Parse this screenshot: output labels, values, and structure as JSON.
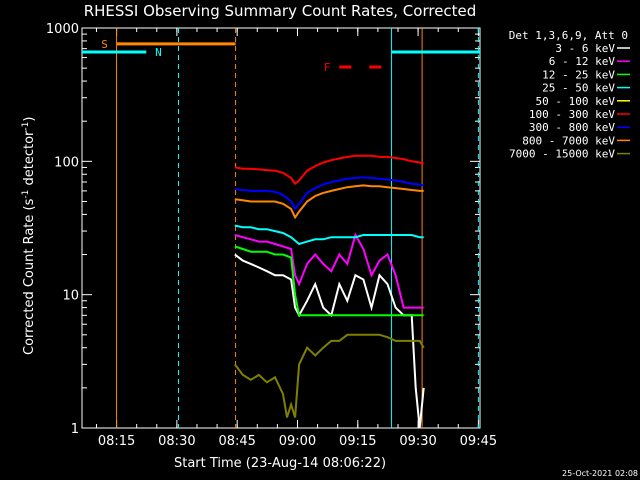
{
  "chart_data": {
    "type": "line",
    "title": "RHESSI Observing Summary Count Rates, Corrected",
    "xlabel": "Start Time (23-Aug-14 08:06:22)",
    "ylabel": "Corrected Count Rate (s⁻¹ detector⁻¹)",
    "ylabel_main": "Corrected Count Rate (s",
    "ylabel_sup1": "-1",
    "ylabel_mid": " detector",
    "ylabel_sup2": "-1",
    "ylabel_end": ")",
    "x_range_minutes": [
      0,
      99
    ],
    "y_scale": "log",
    "ylim": [
      1,
      1000
    ],
    "x_ticks": [
      {
        "min": 8.6,
        "label": "08:15"
      },
      {
        "min": 23.6,
        "label": "08:30"
      },
      {
        "min": 38.6,
        "label": "08:45"
      },
      {
        "min": 53.6,
        "label": "09:00"
      },
      {
        "min": 68.6,
        "label": "09:15"
      },
      {
        "min": 83.6,
        "label": "09:30"
      },
      {
        "min": 98.6,
        "label": "09:45"
      }
    ],
    "y_ticks": [
      {
        "value": 1,
        "label": "1"
      },
      {
        "value": 10,
        "label": "10"
      },
      {
        "value": 100,
        "label": "100"
      },
      {
        "value": 1000,
        "label": "1000"
      }
    ],
    "legend_header": "Det 1,3,6,9, Att 0",
    "legend_position": "right",
    "series": [
      {
        "name": "3 - 6 keV",
        "color": "#ffffff",
        "x": [
          38,
          40,
          42,
          44,
          46,
          48,
          50,
          52,
          53,
          54,
          56,
          58,
          60,
          62,
          64,
          66,
          68,
          70,
          72,
          74,
          76,
          78,
          80,
          82,
          83,
          84,
          85
        ],
        "y": [
          20,
          18,
          17,
          16,
          15,
          14,
          14,
          13,
          8,
          7,
          9,
          12,
          8,
          7,
          12,
          9,
          14,
          13,
          8,
          14,
          12,
          8,
          7,
          7,
          2,
          1,
          2
        ]
      },
      {
        "name": "6 - 12 keV",
        "color": "#ff00ff",
        "x": [
          38,
          40,
          42,
          44,
          46,
          48,
          50,
          52,
          53,
          54,
          56,
          58,
          60,
          62,
          64,
          66,
          68,
          70,
          72,
          74,
          76,
          78,
          80,
          82,
          85
        ],
        "y": [
          28,
          27,
          26,
          25,
          25,
          24,
          23,
          22,
          14,
          12,
          17,
          20,
          17,
          15,
          20,
          17,
          28,
          22,
          14,
          18,
          20,
          14,
          8,
          8,
          8
        ]
      },
      {
        "name": "12 - 25 keV",
        "color": "#00ff00",
        "x": [
          38,
          40,
          42,
          44,
          46,
          48,
          50,
          52,
          53,
          54,
          56,
          58,
          60,
          62,
          64,
          66,
          68,
          70,
          72,
          74,
          76,
          78,
          80,
          82,
          85
        ],
        "y": [
          23,
          22,
          21,
          21,
          21,
          20,
          20,
          19,
          10,
          7,
          7,
          7,
          7,
          7,
          7,
          7,
          7,
          7,
          7,
          7,
          7,
          7,
          7,
          7,
          7
        ]
      },
      {
        "name": "25 - 50 keV",
        "color": "#00ffff",
        "x": [
          38,
          40,
          42,
          44,
          46,
          48,
          50,
          52,
          54,
          56,
          58,
          60,
          62,
          64,
          66,
          68,
          70,
          72,
          74,
          76,
          78,
          80,
          82,
          84,
          85
        ],
        "y": [
          33,
          32,
          32,
          31,
          31,
          30,
          29,
          27,
          24,
          25,
          26,
          26,
          27,
          27,
          27,
          27,
          28,
          28,
          28,
          28,
          28,
          28,
          28,
          27,
          27
        ]
      },
      {
        "name": "50 - 100 keV",
        "color": "#ffff00",
        "x": [],
        "y": []
      },
      {
        "name": "100 - 300 keV",
        "color": "#ff0000",
        "x": [
          38,
          40,
          42,
          44,
          46,
          48,
          50,
          52,
          53,
          54,
          56,
          58,
          60,
          62,
          64,
          66,
          68,
          70,
          72,
          74,
          76,
          78,
          80,
          82,
          84,
          85
        ],
        "y": [
          90,
          88,
          88,
          87,
          86,
          85,
          82,
          75,
          68,
          72,
          85,
          92,
          98,
          102,
          105,
          108,
          110,
          110,
          110,
          108,
          108,
          106,
          104,
          100,
          98,
          96
        ]
      },
      {
        "name": "300 - 800 keV",
        "color": "#0000ff",
        "x": [
          38,
          40,
          42,
          44,
          46,
          48,
          50,
          52,
          53,
          54,
          56,
          58,
          60,
          62,
          64,
          66,
          68,
          70,
          72,
          74,
          76,
          78,
          80,
          82,
          84,
          85
        ],
        "y": [
          62,
          61,
          60,
          60,
          60,
          59,
          56,
          50,
          44,
          48,
          58,
          63,
          67,
          70,
          72,
          74,
          75,
          76,
          75,
          74,
          73,
          72,
          70,
          68,
          67,
          66
        ]
      },
      {
        "name": "800 - 7000 keV",
        "color": "#ff8800",
        "x": [
          38,
          40,
          42,
          44,
          46,
          48,
          50,
          52,
          53,
          54,
          56,
          58,
          60,
          62,
          64,
          66,
          68,
          70,
          72,
          74,
          76,
          78,
          80,
          82,
          84,
          85
        ],
        "y": [
          52,
          51,
          50,
          50,
          50,
          50,
          48,
          44,
          38,
          42,
          50,
          55,
          58,
          60,
          62,
          64,
          65,
          66,
          65,
          65,
          64,
          63,
          62,
          61,
          60,
          60
        ]
      },
      {
        "name": "7000 - 15000 keV",
        "color": "#808000",
        "x": [
          38,
          40,
          42,
          44,
          46,
          48,
          50,
          51,
          52,
          53,
          54,
          56,
          58,
          60,
          62,
          64,
          66,
          68,
          70,
          72,
          74,
          76,
          78,
          80,
          82,
          84,
          85
        ],
        "y": [
          3,
          2.5,
          2.3,
          2.5,
          2.2,
          2.4,
          1.8,
          1.2,
          1.5,
          1.2,
          3,
          4,
          3.5,
          4,
          4.5,
          4.5,
          5,
          5,
          5,
          5,
          5,
          4.8,
          4.5,
          4.5,
          4.5,
          4.5,
          4
        ]
      }
    ],
    "markers": [
      {
        "label": "S",
        "color": "#ff8800",
        "x0": 8.6,
        "x1": 38.2,
        "y": 760,
        "label_x": 5.6
      },
      {
        "label": "N",
        "color": "#00ffff",
        "x0": 0,
        "x1": 16.0,
        "y": 660,
        "label_x": 19.0
      },
      {
        "label": "F",
        "color": "#ff0000",
        "x0": 64.0,
        "x1": 77.0,
        "y": 510,
        "label_x": 61.0,
        "dashed": true
      },
      {
        "label": "",
        "color": "#00ffff",
        "x0": 77.0,
        "x1": 99.0,
        "y": 660
      }
    ],
    "vlines": [
      {
        "x": 8.6,
        "color": "#ff8800",
        "style": "solid"
      },
      {
        "x": 24.0,
        "color": "#00ffff",
        "style": "dashed"
      },
      {
        "x": 38.2,
        "color": "#ff8800",
        "style": "dashed"
      },
      {
        "x": 77.0,
        "color": "#00ffff",
        "style": "solid"
      },
      {
        "x": 84.6,
        "color": "#ff8800",
        "style": "solid"
      },
      {
        "x": 98.6,
        "color": "#00ffff",
        "style": "dashed"
      }
    ],
    "grid": false
  },
  "footer_timestamp": "25-Oct-2021 02:08"
}
